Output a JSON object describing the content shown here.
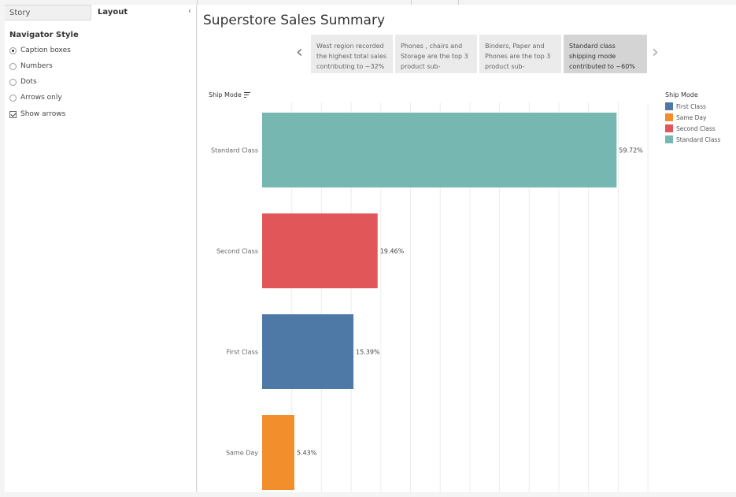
{
  "left_panel": {
    "tabs": {
      "story": "Story",
      "layout": "Layout"
    },
    "collapse_icon": "chevron-left-icon",
    "navigator_heading": "Navigator Style",
    "options": [
      {
        "label": "Caption boxes",
        "selected": true
      },
      {
        "label": "Numbers",
        "selected": false
      },
      {
        "label": "Dots",
        "selected": false
      },
      {
        "label": "Arrows only",
        "selected": false
      }
    ],
    "show_arrows": {
      "label": "Show arrows",
      "checked": true
    }
  },
  "main": {
    "title": "Superstore Sales Summary",
    "captions": [
      {
        "text": "West region recorded the highest total sales contributing to ~32%",
        "active": false
      },
      {
        "text": "Phones , chairs and Storage are the top 3 product sub-",
        "active": false
      },
      {
        "text": "Binders, Paper and Phones are the top 3 product sub-",
        "active": false
      },
      {
        "text": "Standard class shipping mode contributed to ~60%",
        "active": true
      }
    ],
    "shipmode_header": "Ship Mode",
    "legend": {
      "title": "Ship Mode",
      "items": [
        {
          "label": "First Class",
          "color": "#4e79a7"
        },
        {
          "label": "Same Day",
          "color": "#f28e2b"
        },
        {
          "label": "Second Class",
          "color": "#e15759"
        },
        {
          "label": "Standard Class",
          "color": "#76b7b2"
        }
      ]
    }
  },
  "chart_data": {
    "type": "bar",
    "orientation": "horizontal",
    "categories": [
      "Standard Class",
      "Second Class",
      "First Class",
      "Same Day"
    ],
    "values": [
      59.72,
      19.46,
      15.39,
      5.43
    ],
    "labels": [
      "59.72%",
      "19.46%",
      "15.39%",
      "5.43%"
    ],
    "colors": [
      "#76b7b2",
      "#e15759",
      "#4e79a7",
      "#f28e2b"
    ],
    "xlim": [
      0,
      65
    ],
    "grid": "vertical",
    "legend_position": "right"
  }
}
